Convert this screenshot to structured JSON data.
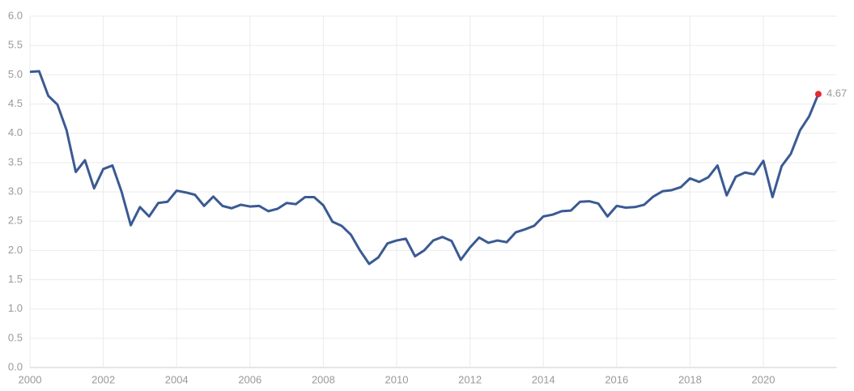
{
  "chart_data": {
    "type": "line",
    "x": [
      2000,
      2000.25,
      2000.5,
      2000.75,
      2001,
      2001.25,
      2001.5,
      2001.75,
      2002,
      2002.25,
      2002.5,
      2002.75,
      2003,
      2003.25,
      2003.5,
      2003.75,
      2004,
      2004.25,
      2004.5,
      2004.75,
      2005,
      2005.25,
      2005.5,
      2005.75,
      2006,
      2006.25,
      2006.5,
      2006.75,
      2007,
      2007.25,
      2007.5,
      2007.75,
      2008,
      2008.25,
      2008.5,
      2008.75,
      2009,
      2009.25,
      2009.5,
      2009.75,
      2010,
      2010.25,
      2010.5,
      2010.75,
      2011,
      2011.25,
      2011.5,
      2011.75,
      2012,
      2012.25,
      2012.5,
      2012.75,
      2013,
      2013.25,
      2013.5,
      2013.75,
      2014,
      2014.25,
      2014.5,
      2014.75,
      2015,
      2015.25,
      2015.5,
      2015.75,
      2016,
      2016.25,
      2016.5,
      2016.75,
      2017,
      2017.25,
      2017.5,
      2017.75,
      2018,
      2018.25,
      2018.5,
      2018.75,
      2019,
      2019.25,
      2019.5,
      2019.75,
      2020,
      2020.25,
      2020.5,
      2020.75,
      2021,
      2021.25,
      2021.5
    ],
    "series": [
      {
        "color": "#3b5a93",
        "marker_color": "#e8272c",
        "values": [
          5.05,
          5.06,
          4.64,
          4.49,
          4.05,
          3.34,
          3.54,
          3.06,
          3.39,
          3.45,
          3.0,
          2.43,
          2.74,
          2.58,
          2.81,
          2.83,
          3.02,
          2.99,
          2.95,
          2.76,
          2.92,
          2.76,
          2.72,
          2.78,
          2.75,
          2.76,
          2.67,
          2.71,
          2.81,
          2.79,
          2.91,
          2.91,
          2.77,
          2.49,
          2.42,
          2.27,
          2.0,
          1.77,
          1.88,
          2.12,
          2.17,
          2.2,
          1.9,
          2.0,
          2.17,
          2.23,
          2.16,
          1.84,
          2.05,
          2.22,
          2.13,
          2.17,
          2.14,
          2.31,
          2.36,
          2.42,
          2.58,
          2.61,
          2.67,
          2.68,
          2.83,
          2.84,
          2.8,
          2.58,
          2.76,
          2.73,
          2.74,
          2.78,
          2.92,
          3.01,
          3.03,
          3.08,
          3.23,
          3.17,
          3.25,
          3.45,
          2.94,
          3.26,
          3.33,
          3.3,
          3.53,
          2.91,
          3.44,
          3.65,
          4.05,
          4.29,
          4.67
        ]
      }
    ],
    "xlim": [
      2000,
      2022
    ],
    "xticks": [
      2000,
      2002,
      2004,
      2006,
      2008,
      2010,
      2012,
      2014,
      2016,
      2018,
      2020
    ],
    "ylim": [
      0,
      6
    ],
    "yticks": [
      {
        "value": 0,
        "label": "0.0"
      },
      {
        "value": 0.5,
        "label": "0.5"
      },
      {
        "value": 1,
        "label": "1.0"
      },
      {
        "value": 1.5,
        "label": "1.5"
      },
      {
        "value": 2,
        "label": "2.0"
      },
      {
        "value": 2.5,
        "label": "2.5"
      },
      {
        "value": 3,
        "label": "3.0"
      },
      {
        "value": 3.5,
        "label": "3.5"
      },
      {
        "value": 4,
        "label": "4.0"
      },
      {
        "value": 4.5,
        "label": "4.5"
      },
      {
        "value": 5,
        "label": "5.0"
      },
      {
        "value": 5.5,
        "label": "5.5"
      },
      {
        "value": 6,
        "label": "6.0"
      }
    ],
    "grid": true,
    "label_last": true
  }
}
